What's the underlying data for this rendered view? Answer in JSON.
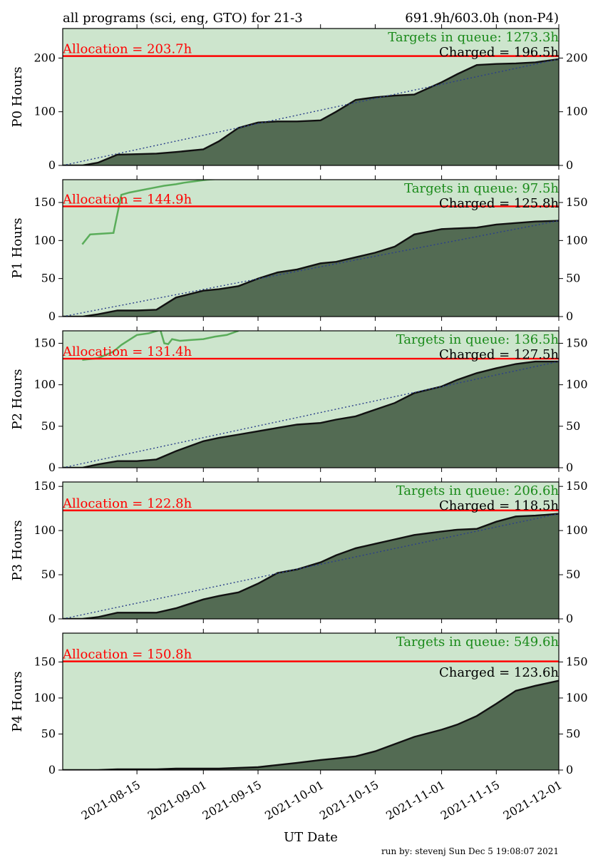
{
  "header": {
    "left": "all programs (sci, eng, GTO) for 21-3",
    "right": "691.9h/603.0h (non-P4)"
  },
  "footer": {
    "run_by": "run by: stevenj Sun Dec 5 19:08:07 2021"
  },
  "colors": {
    "background_fill": "#cde5cd",
    "charged_fill": "#536b53",
    "charged_line": "#111111",
    "queue_line": "#5aad5a",
    "allocation_line": "#ff0000",
    "allocation_text": "#ff0000",
    "queue_text": "#1a8a1a",
    "pace_line": "#2b3f8a"
  },
  "chart_data": [
    {
      "type": "area",
      "panel": "P0",
      "ylabel": "P0 Hours",
      "ylim": [
        0,
        255
      ],
      "yticks": [
        0,
        100,
        200
      ],
      "allocation": 203.7,
      "allocation_label": "Allocation = 203.7h",
      "queue_label": "Targets in queue: 1273.3h",
      "charged_label": "Charged = 196.5h",
      "x": [
        "2021-08-01",
        "2021-08-05",
        "2021-08-10",
        "2021-08-15",
        "2021-08-20",
        "2021-08-25",
        "2021-09-01",
        "2021-09-05",
        "2021-09-10",
        "2021-09-15",
        "2021-09-20",
        "2021-09-25",
        "2021-10-01",
        "2021-10-05",
        "2021-10-10",
        "2021-10-15",
        "2021-10-20",
        "2021-10-25",
        "2021-11-01",
        "2021-11-05",
        "2021-11-10",
        "2021-11-15",
        "2021-11-20",
        "2021-11-25",
        "2021-12-01"
      ],
      "charged": [
        0,
        5,
        20,
        21,
        22,
        25,
        30,
        45,
        70,
        80,
        82,
        82,
        84,
        100,
        122,
        127,
        130,
        132,
        155,
        170,
        187,
        189,
        190,
        192,
        198
      ],
      "queue_x": [],
      "queue": []
    },
    {
      "type": "area",
      "panel": "P1",
      "ylabel": "P1 Hours",
      "ylim": [
        0,
        180
      ],
      "yticks": [
        0,
        50,
        100,
        150
      ],
      "allocation": 144.9,
      "allocation_label": "Allocation = 144.9h",
      "queue_label": "Targets in queue: 97.5h",
      "charged_label": "Charged = 125.8h",
      "x": [
        "2021-08-01",
        "2021-08-05",
        "2021-08-10",
        "2021-08-15",
        "2021-08-20",
        "2021-08-25",
        "2021-09-01",
        "2021-09-05",
        "2021-09-10",
        "2021-09-15",
        "2021-09-20",
        "2021-09-25",
        "2021-10-01",
        "2021-10-05",
        "2021-10-10",
        "2021-10-15",
        "2021-10-20",
        "2021-10-25",
        "2021-11-01",
        "2021-11-05",
        "2021-11-10",
        "2021-11-15",
        "2021-11-20",
        "2021-11-25",
        "2021-12-01"
      ],
      "charged": [
        0,
        3,
        8,
        8,
        9,
        25,
        34,
        36,
        40,
        50,
        58,
        62,
        70,
        72,
        78,
        84,
        92,
        108,
        115,
        116,
        117,
        121,
        123,
        125,
        126
      ],
      "queue_x": [
        "2021-08-01",
        "2021-08-03",
        "2021-08-06",
        "2021-08-09",
        "2021-08-10",
        "2021-08-11",
        "2021-08-13",
        "2021-08-16",
        "2021-08-19",
        "2021-08-22",
        "2021-08-25",
        "2021-08-27",
        "2021-08-30",
        "2021-09-02",
        "2021-09-05",
        "2021-09-08",
        "2021-09-10"
      ],
      "queue": [
        95,
        108,
        109,
        110,
        135,
        160,
        163,
        166,
        169,
        172,
        174,
        176,
        178,
        180,
        181,
        181,
        182
      ]
    },
    {
      "type": "area",
      "panel": "P2",
      "ylabel": "P2 Hours",
      "ylim": [
        0,
        165
      ],
      "yticks": [
        0,
        50,
        100,
        150
      ],
      "allocation": 131.4,
      "allocation_label": "Allocation = 131.4h",
      "queue_label": "Targets in queue: 136.5h",
      "charged_label": "Charged = 127.5h",
      "x": [
        "2021-08-01",
        "2021-08-05",
        "2021-08-10",
        "2021-08-15",
        "2021-08-20",
        "2021-08-25",
        "2021-09-01",
        "2021-09-05",
        "2021-09-10",
        "2021-09-15",
        "2021-09-20",
        "2021-09-25",
        "2021-10-01",
        "2021-10-05",
        "2021-10-10",
        "2021-10-15",
        "2021-10-20",
        "2021-10-25",
        "2021-11-01",
        "2021-11-05",
        "2021-11-10",
        "2021-11-15",
        "2021-11-20",
        "2021-11-25",
        "2021-12-01"
      ],
      "charged": [
        0,
        4,
        8,
        8,
        10,
        20,
        32,
        36,
        40,
        44,
        48,
        52,
        54,
        58,
        62,
        70,
        78,
        90,
        98,
        106,
        114,
        120,
        125,
        128,
        128
      ],
      "queue_x": [
        "2021-08-01",
        "2021-08-05",
        "2021-08-09",
        "2021-08-11",
        "2021-08-15",
        "2021-08-18",
        "2021-08-21",
        "2021-08-22",
        "2021-08-23",
        "2021-08-24",
        "2021-08-26",
        "2021-08-29",
        "2021-09-01",
        "2021-09-04",
        "2021-09-07",
        "2021-09-10"
      ],
      "queue": [
        130,
        132,
        140,
        148,
        160,
        162,
        166,
        150,
        149,
        155,
        153,
        154,
        155,
        158,
        160,
        165
      ]
    },
    {
      "type": "area",
      "panel": "P3",
      "ylabel": "P3 Hours",
      "ylim": [
        0,
        155
      ],
      "yticks": [
        0,
        50,
        100,
        150
      ],
      "allocation": 122.8,
      "allocation_label": "Allocation = 122.8h",
      "queue_label": "Targets in queue: 206.6h",
      "charged_label": "Charged = 118.5h",
      "x": [
        "2021-08-01",
        "2021-08-05",
        "2021-08-10",
        "2021-08-15",
        "2021-08-20",
        "2021-08-25",
        "2021-09-01",
        "2021-09-05",
        "2021-09-10",
        "2021-09-15",
        "2021-09-20",
        "2021-09-25",
        "2021-10-01",
        "2021-10-05",
        "2021-10-10",
        "2021-10-15",
        "2021-10-20",
        "2021-10-25",
        "2021-11-01",
        "2021-11-05",
        "2021-11-10",
        "2021-11-15",
        "2021-11-20",
        "2021-11-25",
        "2021-12-01"
      ],
      "charged": [
        0,
        2,
        7,
        7,
        7,
        12,
        22,
        26,
        30,
        40,
        52,
        56,
        64,
        72,
        80,
        85,
        90,
        95,
        99,
        101,
        102,
        110,
        116,
        117,
        119
      ],
      "queue_x": [],
      "queue": []
    },
    {
      "type": "area",
      "panel": "P4",
      "ylabel": "P4 Hours",
      "ylim": [
        0,
        190
      ],
      "yticks": [
        0,
        50,
        100,
        150
      ],
      "allocation": 150.8,
      "allocation_label": "Allocation = 150.8h",
      "queue_label": "Targets in queue: 549.6h",
      "charged_label": "Charged = 123.6h",
      "x": [
        "2021-08-01",
        "2021-08-05",
        "2021-08-10",
        "2021-08-15",
        "2021-08-20",
        "2021-08-25",
        "2021-09-01",
        "2021-09-05",
        "2021-09-10",
        "2021-09-15",
        "2021-09-20",
        "2021-09-25",
        "2021-10-01",
        "2021-10-05",
        "2021-10-10",
        "2021-10-15",
        "2021-10-20",
        "2021-10-25",
        "2021-11-01",
        "2021-11-05",
        "2021-11-10",
        "2021-11-15",
        "2021-11-20",
        "2021-11-25",
        "2021-12-01"
      ],
      "charged": [
        0,
        0,
        1,
        1,
        1,
        2,
        2,
        2,
        3,
        4,
        7,
        10,
        14,
        16,
        19,
        26,
        36,
        46,
        56,
        63,
        75,
        92,
        110,
        117,
        124
      ],
      "queue_x": [],
      "queue": [],
      "xlabel": "UT Date",
      "xticklabels": [
        "2021-08-15",
        "2021-09-01",
        "2021-09-15",
        "2021-10-01",
        "2021-10-15",
        "2021-11-01",
        "2021-11-15",
        "2021-12-01"
      ]
    }
  ]
}
